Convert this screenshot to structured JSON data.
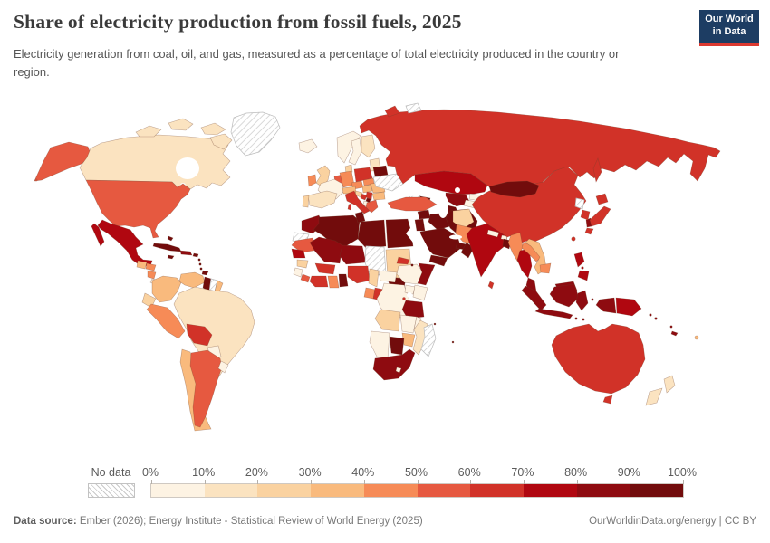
{
  "header": {
    "title": "Share of electricity production from fossil fuels, 2025",
    "subtitle": "Electricity generation from coal, oil, and gas, measured as a percentage of total electricity produced in the country or region.",
    "logo": {
      "line1": "Our World",
      "line2": "in Data",
      "bg_color": "#1d3d63",
      "accent_color": "#dc3930"
    }
  },
  "legend": {
    "no_data_label": "No data",
    "tick_labels": [
      "0%",
      "10%",
      "20%",
      "30%",
      "40%",
      "50%",
      "60%",
      "70%",
      "80%",
      "90%",
      "100%"
    ]
  },
  "footer": {
    "source_label": "Data source:",
    "source_text": " Ember (2026); Energy Institute - Statistical Review of World Energy (2025)",
    "right_text": "OurWorldinData.org/energy | CC BY"
  },
  "chart_data": {
    "type": "choropleth-map",
    "title": "Share of electricity production from fossil fuels, 2025",
    "unit": "%",
    "bins": [
      0,
      10,
      20,
      30,
      40,
      50,
      60,
      70,
      80,
      90,
      100
    ],
    "colors": [
      "#FDF3E3",
      "#FBE3C0",
      "#FAD2A0",
      "#F9BA7D",
      "#F68B57",
      "#E65940",
      "#D13228",
      "#B00710",
      "#8E0B10",
      "#720C0C"
    ],
    "no_data_pattern": "diagonal-hatch",
    "countries": [
      {
        "name": "United States",
        "value": 58
      },
      {
        "name": "Canada",
        "value": 18
      },
      {
        "name": "Greenland",
        "value": null
      },
      {
        "name": "Mexico",
        "value": 75
      },
      {
        "name": "Guatemala",
        "value": 35
      },
      {
        "name": "Honduras",
        "value": 45
      },
      {
        "name": "Nicaragua",
        "value": 45
      },
      {
        "name": "Costa Rica",
        "value": 2
      },
      {
        "name": "Panama",
        "value": 45
      },
      {
        "name": "Cuba",
        "value": 92
      },
      {
        "name": "Dominican Republic",
        "value": 85
      },
      {
        "name": "Jamaica",
        "value": 90
      },
      {
        "name": "Puerto Rico",
        "value": 95
      },
      {
        "name": "Bahamas",
        "value": 95
      },
      {
        "name": "Caribbean islands",
        "value": 90
      },
      {
        "name": "Trinidad and Tobago",
        "value": 99
      },
      {
        "name": "Colombia",
        "value": 32
      },
      {
        "name": "Venezuela",
        "value": 35
      },
      {
        "name": "Guyana",
        "value": 95
      },
      {
        "name": "Suriname",
        "value": null
      },
      {
        "name": "French Guiana",
        "value": 35
      },
      {
        "name": "Ecuador",
        "value": 22
      },
      {
        "name": "Peru",
        "value": 45
      },
      {
        "name": "Brazil",
        "value": 12
      },
      {
        "name": "Bolivia",
        "value": 65
      },
      {
        "name": "Paraguay",
        "value": 0
      },
      {
        "name": "Chile",
        "value": 38
      },
      {
        "name": "Argentina",
        "value": 55
      },
      {
        "name": "Uruguay",
        "value": 5
      },
      {
        "name": "Iceland",
        "value": 0
      },
      {
        "name": "Norway",
        "value": 1
      },
      {
        "name": "Sweden",
        "value": 1
      },
      {
        "name": "Finland",
        "value": 12
      },
      {
        "name": "Estonia",
        "value": 18
      },
      {
        "name": "Denmark",
        "value": 25
      },
      {
        "name": "United Kingdom",
        "value": 28
      },
      {
        "name": "Ireland",
        "value": 45
      },
      {
        "name": "Netherlands",
        "value": 55
      },
      {
        "name": "France",
        "value": 8
      },
      {
        "name": "Germany",
        "value": 45
      },
      {
        "name": "Poland",
        "value": 65
      },
      {
        "name": "Czechia",
        "value": 48
      },
      {
        "name": "Slovakia",
        "value": 40
      },
      {
        "name": "Austria",
        "value": 30
      },
      {
        "name": "Hungary",
        "value": 30
      },
      {
        "name": "Romania",
        "value": 35
      },
      {
        "name": "Bulgaria",
        "value": 38
      },
      {
        "name": "Serbia",
        "value": 65
      },
      {
        "name": "Kosovo",
        "value": 95
      },
      {
        "name": "Bosnia and Herzegovina",
        "value": 62
      },
      {
        "name": "Croatia",
        "value": 25
      },
      {
        "name": "Albania",
        "value": 2
      },
      {
        "name": "Greece",
        "value": 52
      },
      {
        "name": "Italy",
        "value": 62
      },
      {
        "name": "Spain",
        "value": 18
      },
      {
        "name": "Portugal",
        "value": 25
      },
      {
        "name": "Ukraine",
        "value": null
      },
      {
        "name": "Belarus",
        "value": 97
      },
      {
        "name": "Russia",
        "value": 63
      },
      {
        "name": "Svalbard",
        "value": null
      },
      {
        "name": "Kazakhstan",
        "value": 75
      },
      {
        "name": "Uzbekistan",
        "value": 85
      },
      {
        "name": "Turkmenistan",
        "value": 100
      },
      {
        "name": "Kyrgyzstan",
        "value": 8
      },
      {
        "name": "Tajikistan",
        "value": 5
      },
      {
        "name": "Georgia",
        "value": null
      },
      {
        "name": "Azerbaijan",
        "value": 94
      },
      {
        "name": "Turkey",
        "value": 57
      },
      {
        "name": "Syria",
        "value": 95
      },
      {
        "name": "Iraq",
        "value": 98
      },
      {
        "name": "Iran",
        "value": 94
      },
      {
        "name": "Jordan",
        "value": 97
      },
      {
        "name": "Saudi Arabia",
        "value": 100
      },
      {
        "name": "United Arab Emirates",
        "value": 95
      },
      {
        "name": "Oman",
        "value": 96
      },
      {
        "name": "Yemen",
        "value": 100
      },
      {
        "name": "Afghanistan",
        "value": 25
      },
      {
        "name": "Pakistan",
        "value": 48
      },
      {
        "name": "India",
        "value": 74
      },
      {
        "name": "Nepal",
        "value": 2
      },
      {
        "name": "Bhutan",
        "value": 2
      },
      {
        "name": "Sri Lanka",
        "value": 60
      },
      {
        "name": "Bangladesh",
        "value": 98
      },
      {
        "name": "Myanmar",
        "value": 45
      },
      {
        "name": "Thailand",
        "value": 72
      },
      {
        "name": "Laos",
        "value": 45
      },
      {
        "name": "Vietnam",
        "value": 38
      },
      {
        "name": "Cambodia",
        "value": 45
      },
      {
        "name": "Malaysia",
        "value": 85
      },
      {
        "name": "Indonesia",
        "value": 82
      },
      {
        "name": "Papua New Guinea",
        "value": 75
      },
      {
        "name": "Philippines",
        "value": 78
      },
      {
        "name": "Taiwan",
        "value": 82
      },
      {
        "name": "China",
        "value": 62
      },
      {
        "name": "Mongolia",
        "value": 92
      },
      {
        "name": "North Korea",
        "value": null
      },
      {
        "name": "South Korea",
        "value": 62
      },
      {
        "name": "Japan",
        "value": 65
      },
      {
        "name": "Australia",
        "value": 62
      },
      {
        "name": "New Zealand",
        "value": 15
      },
      {
        "name": "Fiji",
        "value": 35
      },
      {
        "name": "New Caledonia",
        "value": 85
      },
      {
        "name": "Vanuatu",
        "value": 85
      },
      {
        "name": "Solomon Islands",
        "value": 85
      },
      {
        "name": "Morocco",
        "value": 88
      },
      {
        "name": "Western Sahara",
        "value": null
      },
      {
        "name": "Algeria",
        "value": 99
      },
      {
        "name": "Tunisia",
        "value": 97
      },
      {
        "name": "Libya",
        "value": 100
      },
      {
        "name": "Egypt",
        "value": 91
      },
      {
        "name": "Mauritania",
        "value": 55
      },
      {
        "name": "Mali",
        "value": 85
      },
      {
        "name": "Niger",
        "value": 85
      },
      {
        "name": "Chad",
        "value": null
      },
      {
        "name": "Sudan",
        "value": 28
      },
      {
        "name": "Eritrea",
        "value": 65
      },
      {
        "name": "South Sudan",
        "value": 92
      },
      {
        "name": "Ethiopia",
        "value": 1
      },
      {
        "name": "Somalia",
        "value": 85
      },
      {
        "name": "Djibouti",
        "value": 95
      },
      {
        "name": "Senegal",
        "value": 75
      },
      {
        "name": "Guinea",
        "value": 25
      },
      {
        "name": "Sierra Leone",
        "value": 4
      },
      {
        "name": "Liberia",
        "value": 55
      },
      {
        "name": "Ivory Coast",
        "value": 65
      },
      {
        "name": "Ghana",
        "value": 45
      },
      {
        "name": "Benin",
        "value": 92
      },
      {
        "name": "Burkina Faso",
        "value": 65
      },
      {
        "name": "Nigeria",
        "value": 68
      },
      {
        "name": "Cameroon",
        "value": 25
      },
      {
        "name": "Central African Republic",
        "value": 2
      },
      {
        "name": "Gabon",
        "value": 45
      },
      {
        "name": "Congo",
        "value": 65
      },
      {
        "name": "Democratic Republic of Congo",
        "value": 2
      },
      {
        "name": "Uganda",
        "value": 5
      },
      {
        "name": "Kenya",
        "value": 8
      },
      {
        "name": "Rwanda",
        "value": 60
      },
      {
        "name": "Tanzania",
        "value": 82
      },
      {
        "name": "Angola",
        "value": 25
      },
      {
        "name": "Zambia",
        "value": 4
      },
      {
        "name": "Malawi",
        "value": 8
      },
      {
        "name": "Mozambique",
        "value": 15
      },
      {
        "name": "Zimbabwe",
        "value": 35
      },
      {
        "name": "Botswana",
        "value": 92
      },
      {
        "name": "Namibia",
        "value": 4
      },
      {
        "name": "South Africa",
        "value": 85
      },
      {
        "name": "Lesotho",
        "value": 0
      },
      {
        "name": "Madagascar",
        "value": null
      },
      {
        "name": "Comoros",
        "value": 95
      },
      {
        "name": "Mauritius",
        "value": 95
      }
    ]
  }
}
